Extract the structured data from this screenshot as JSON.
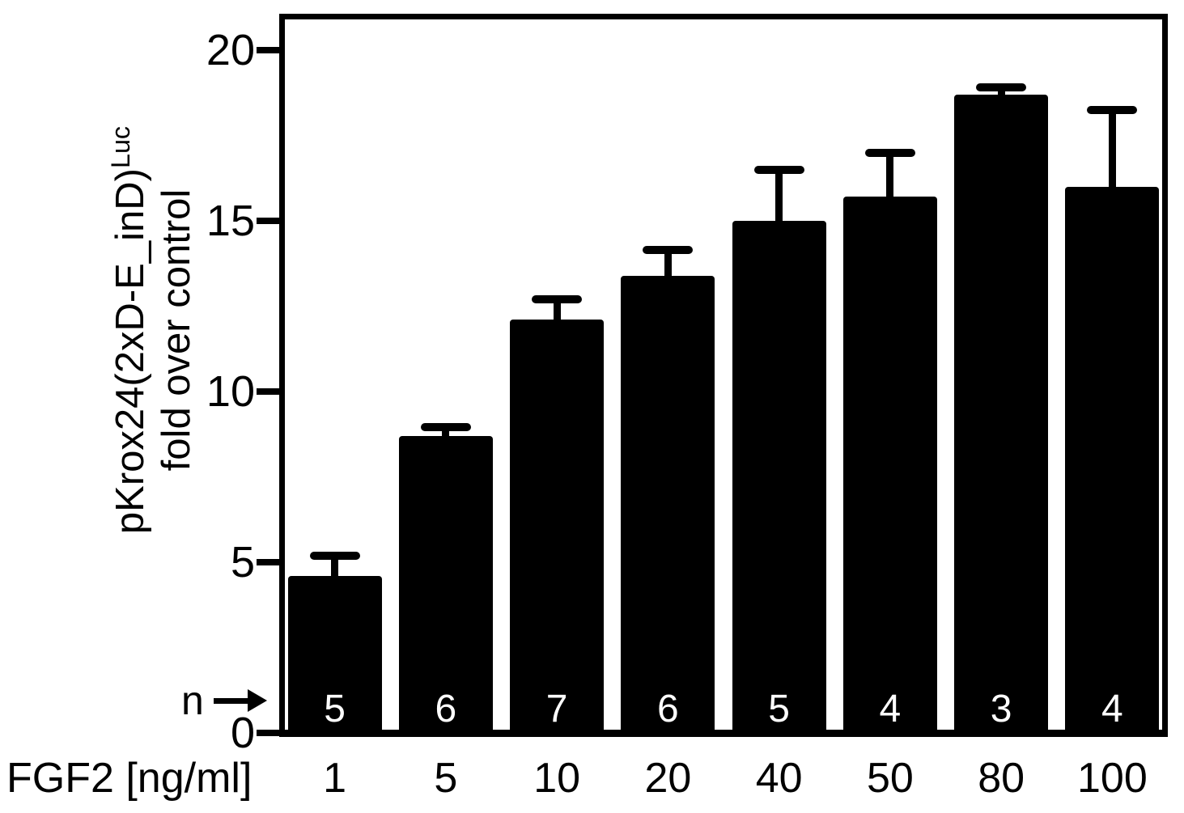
{
  "labels": {
    "ylabel_main": "pKrox24(2xD-E_inD)",
    "ylabel_sup": "Luc",
    "ylabel_line2": "fold over control",
    "xlabel": "FGF2 [ng/ml]",
    "n_label": "n"
  },
  "chart_data": {
    "type": "bar",
    "title": "",
    "xlabel": "FGF2 [ng/ml]",
    "ylabel": "pKrox24(2xD-E_inD)^Luc fold over control",
    "categories": [
      "1",
      "5",
      "10",
      "20",
      "40",
      "50",
      "80",
      "100"
    ],
    "values": [
      4.6,
      8.7,
      12.1,
      13.4,
      15.0,
      15.7,
      18.7,
      16.0
    ],
    "errors_plus": [
      0.6,
      0.25,
      0.6,
      0.75,
      1.5,
      1.3,
      0.2,
      2.25
    ],
    "n_values": [
      5,
      6,
      7,
      6,
      5,
      4,
      3,
      4
    ],
    "ylim": [
      0,
      20
    ],
    "yticks": [
      0,
      5,
      10,
      15,
      20
    ],
    "grid": false,
    "legend": "none",
    "bar_color": "#000000",
    "n_text_color": "#ffffff",
    "axis_color": "#000000",
    "background_color": "#ffffff"
  }
}
